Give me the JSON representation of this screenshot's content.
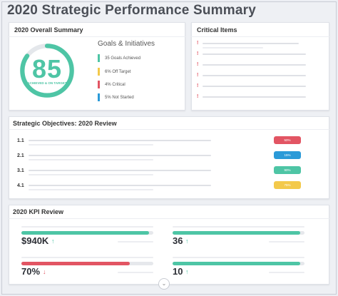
{
  "page": {
    "title": "2020 Strategic Performance Summary"
  },
  "overall": {
    "title": "2020 Overall Summary",
    "score": "85",
    "score_suffix": "%",
    "caption": "ACHIEVED & ON TARGET",
    "score_fraction": 0.85,
    "ring_color": "#4ec5a5",
    "goals_title": "Goals & Initiatives",
    "legend": [
      {
        "label": "35 Goals Achieved",
        "color": "#4ec5a5"
      },
      {
        "label": "6% Off Target",
        "color": "#f3c94b"
      },
      {
        "label": "4% Critical",
        "color": "#e25563"
      },
      {
        "label": "5% Not Started",
        "color": "#2b9ad8"
      }
    ]
  },
  "critical": {
    "title": "Critical Items",
    "mark": "!",
    "count": 6
  },
  "objectives": {
    "title": "Strategic Objectives: 2020 Review",
    "items": [
      {
        "num": "1.1",
        "badge": "50%",
        "color": "#e25563"
      },
      {
        "num": "2.1",
        "badge": "15%",
        "color": "#2b9ad8"
      },
      {
        "num": "3.1",
        "badge": "90%",
        "color": "#4ec5a5"
      },
      {
        "num": "4.1",
        "badge": "75%",
        "color": "#f3c94b"
      }
    ]
  },
  "kpi": {
    "title": "2020 KPI Review",
    "items": [
      {
        "value": "$940K",
        "arrow": "↑",
        "arrow_color": "#4ec5a5",
        "progress": 0.97,
        "color": "#4ec5a5"
      },
      {
        "value": "36",
        "arrow": "↑",
        "arrow_color": "#4ec5a5",
        "progress": 0.97,
        "color": "#4ec5a5"
      },
      {
        "value": "70%",
        "arrow": "↓",
        "arrow_color": "#e25563",
        "progress": 0.82,
        "color": "#e25563"
      },
      {
        "value": "10",
        "arrow": "↑",
        "arrow_color": "#4ec5a5",
        "progress": 0.97,
        "color": "#4ec5a5"
      }
    ]
  },
  "scroll": {
    "icon": "chevron-down-icon",
    "glyph": "⌄"
  }
}
